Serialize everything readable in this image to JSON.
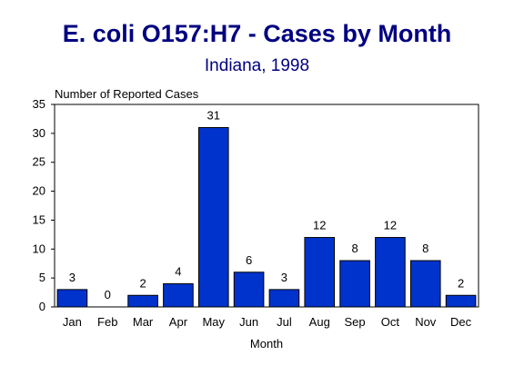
{
  "chart_data": {
    "type": "bar",
    "title": "E. coli O157:H7 - Cases by Month",
    "subtitle": "Indiana, 1998",
    "ylabel": "Number of Reported Cases",
    "xlabel": "Month",
    "categories": [
      "Jan",
      "Feb",
      "Mar",
      "Apr",
      "May",
      "Jun",
      "Jul",
      "Aug",
      "Sep",
      "Oct",
      "Nov",
      "Dec"
    ],
    "values": [
      3,
      0,
      2,
      4,
      31,
      6,
      3,
      12,
      8,
      12,
      8,
      2
    ],
    "data_labels": [
      "3",
      "0",
      "2",
      "4",
      "31",
      "6",
      "3",
      "12",
      "8",
      "12",
      "8",
      "2"
    ],
    "ylim": [
      0,
      35
    ],
    "yticks": [
      0,
      5,
      10,
      15,
      20,
      25,
      30,
      35
    ],
    "ytick_labels": [
      "0",
      "5",
      "10",
      "15",
      "20",
      "25",
      "30",
      "35"
    ],
    "grid": false,
    "legend": "none",
    "colors": {
      "bar": "#0033CC",
      "title": "#000080"
    }
  }
}
